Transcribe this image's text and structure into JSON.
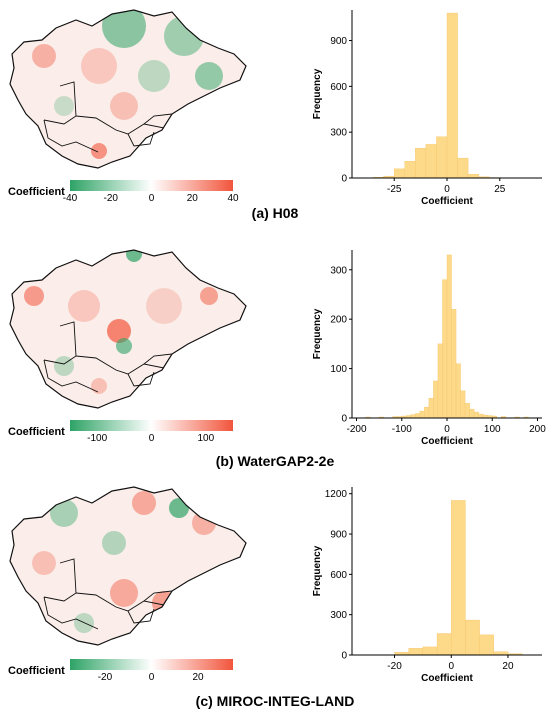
{
  "colorbar_label": "Coefficient",
  "colors": {
    "neg": "#2ea365",
    "mid": "#ffffff",
    "pos": "#f2553c",
    "bar": "#fdd98a",
    "bar_edge": "#f5c76a"
  },
  "panels": [
    {
      "caption": "(a) H08",
      "colorbar_ticks": [
        "-40",
        "-20",
        "0",
        "20",
        "40"
      ],
      "colorbar_range": [
        -40,
        40
      ]
    },
    {
      "caption": "(b) WaterGAP2-2e",
      "colorbar_ticks": [
        "-100",
        "0",
        "100"
      ],
      "colorbar_range": [
        -150,
        150
      ]
    },
    {
      "caption": "(c) MIROC-INTEG-LAND",
      "colorbar_ticks": [
        "-20",
        "0",
        "20"
      ],
      "colorbar_range": [
        -35,
        35
      ]
    }
  ],
  "chart_data": [
    {
      "type": "bar",
      "xlabel": "Coefficient",
      "ylabel": "Frequency",
      "xlim": [
        -45,
        45
      ],
      "ylim": [
        0,
        1100
      ],
      "xticks": [
        -25,
        0,
        25
      ],
      "yticks": [
        0,
        300,
        600,
        900
      ],
      "bins": [
        {
          "x0": -40,
          "x1": -35,
          "count": 2
        },
        {
          "x0": -35,
          "x1": -30,
          "count": 5
        },
        {
          "x0": -30,
          "x1": -25,
          "count": 12
        },
        {
          "x0": -25,
          "x1": -20,
          "count": 60
        },
        {
          "x0": -20,
          "x1": -15,
          "count": 110
        },
        {
          "x0": -15,
          "x1": -10,
          "count": 195
        },
        {
          "x0": -10,
          "x1": -5,
          "count": 220
        },
        {
          "x0": -5,
          "x1": 0,
          "count": 270
        },
        {
          "x0": 0,
          "x1": 5,
          "count": 1080
        },
        {
          "x0": 5,
          "x1": 10,
          "count": 130
        },
        {
          "x0": 10,
          "x1": 15,
          "count": 25
        },
        {
          "x0": 15,
          "x1": 20,
          "count": 8
        },
        {
          "x0": 20,
          "x1": 25,
          "count": 3
        }
      ]
    },
    {
      "type": "bar",
      "xlabel": "Coefficient",
      "ylabel": "Frequency",
      "xlim": [
        -210,
        210
      ],
      "ylim": [
        0,
        340
      ],
      "xticks": [
        -200,
        -100,
        0,
        100,
        200
      ],
      "yticks": [
        0,
        100,
        200,
        300
      ],
      "bins": [
        {
          "x0": -180,
          "x1": -170,
          "count": 2
        },
        {
          "x0": -150,
          "x1": -140,
          "count": 2
        },
        {
          "x0": -120,
          "x1": -110,
          "count": 3
        },
        {
          "x0": -110,
          "x1": -100,
          "count": 3
        },
        {
          "x0": -100,
          "x1": -90,
          "count": 4
        },
        {
          "x0": -90,
          "x1": -80,
          "count": 5
        },
        {
          "x0": -80,
          "x1": -70,
          "count": 7
        },
        {
          "x0": -70,
          "x1": -60,
          "count": 9
        },
        {
          "x0": -60,
          "x1": -50,
          "count": 14
        },
        {
          "x0": -50,
          "x1": -40,
          "count": 22
        },
        {
          "x0": -40,
          "x1": -30,
          "count": 40
        },
        {
          "x0": -30,
          "x1": -20,
          "count": 75
        },
        {
          "x0": -20,
          "x1": -10,
          "count": 150
        },
        {
          "x0": -10,
          "x1": 0,
          "count": 280
        },
        {
          "x0": 0,
          "x1": 10,
          "count": 330
        },
        {
          "x0": 10,
          "x1": 20,
          "count": 220
        },
        {
          "x0": 20,
          "x1": 30,
          "count": 110
        },
        {
          "x0": 30,
          "x1": 40,
          "count": 55
        },
        {
          "x0": 40,
          "x1": 50,
          "count": 30
        },
        {
          "x0": 50,
          "x1": 60,
          "count": 18
        },
        {
          "x0": 60,
          "x1": 70,
          "count": 12
        },
        {
          "x0": 70,
          "x1": 80,
          "count": 8
        },
        {
          "x0": 80,
          "x1": 90,
          "count": 6
        },
        {
          "x0": 90,
          "x1": 100,
          "count": 5
        },
        {
          "x0": 100,
          "x1": 110,
          "count": 4
        },
        {
          "x0": 120,
          "x1": 130,
          "count": 3
        },
        {
          "x0": 150,
          "x1": 160,
          "count": 2
        },
        {
          "x0": 170,
          "x1": 180,
          "count": 2
        }
      ]
    },
    {
      "type": "bar",
      "xlabel": "Coefficient",
      "ylabel": "Frequency",
      "xlim": [
        -35,
        32
      ],
      "ylim": [
        0,
        1250
      ],
      "xticks": [
        -20,
        0,
        20
      ],
      "yticks": [
        0,
        300,
        600,
        900,
        1200
      ],
      "bins": [
        {
          "x0": -20,
          "x1": -15,
          "count": 20
        },
        {
          "x0": -15,
          "x1": -10,
          "count": 50
        },
        {
          "x0": -10,
          "x1": -5,
          "count": 60
        },
        {
          "x0": -5,
          "x1": 0,
          "count": 160
        },
        {
          "x0": 0,
          "x1": 5,
          "count": 1150
        },
        {
          "x0": 5,
          "x1": 10,
          "count": 260
        },
        {
          "x0": 10,
          "x1": 15,
          "count": 150
        },
        {
          "x0": 15,
          "x1": 20,
          "count": 25
        },
        {
          "x0": 20,
          "x1": 25,
          "count": 10
        }
      ]
    }
  ]
}
